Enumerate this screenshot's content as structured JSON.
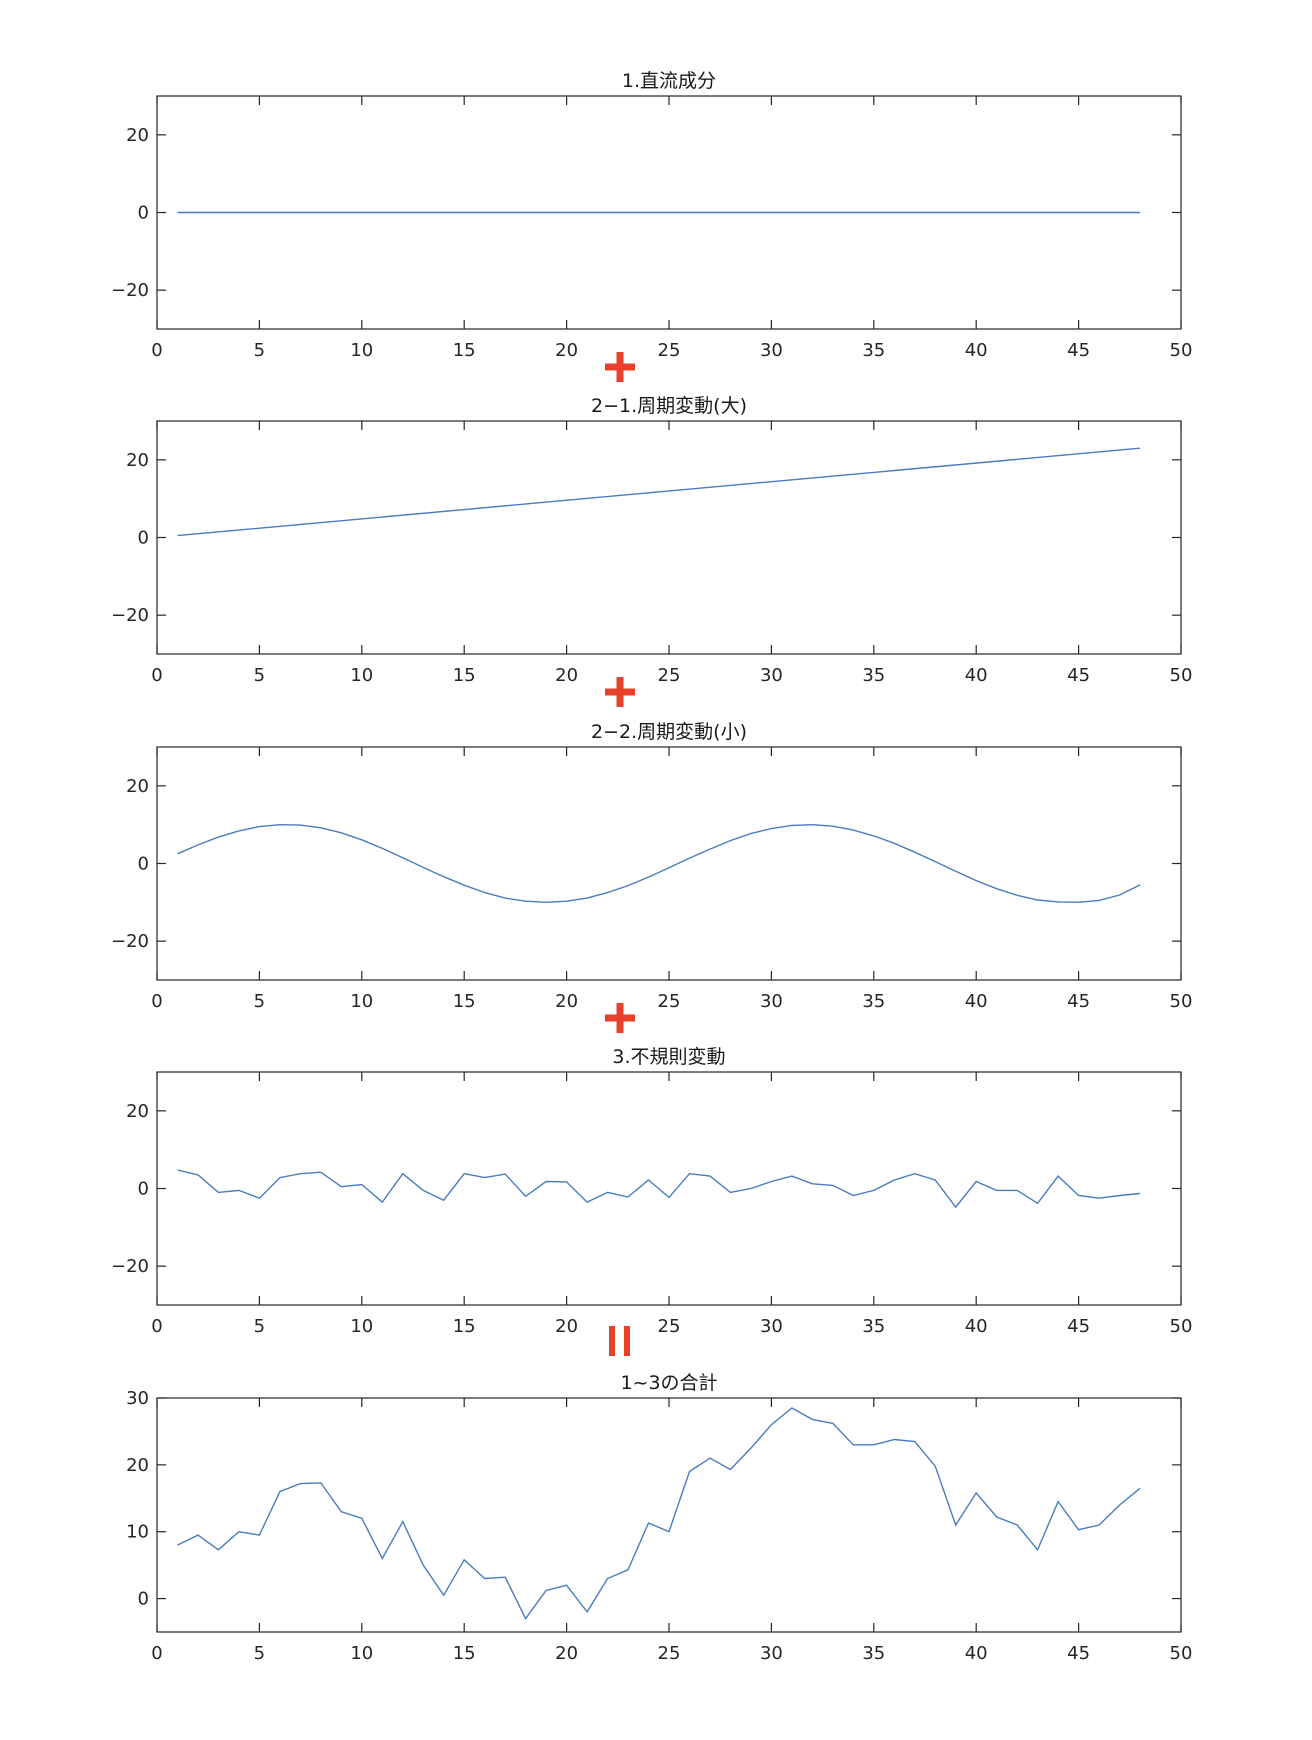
{
  "colors": {
    "line": "#4a7dbc",
    "operator": "#e8402a",
    "axis": "#262626"
  },
  "operators": [
    "plus-symbol",
    "plus-symbol",
    "plus-symbol",
    "equals-symbol"
  ],
  "chart_data": [
    {
      "type": "line",
      "title": "1.直流成分",
      "xlim": [
        0,
        50
      ],
      "ylim": [
        -30,
        30
      ],
      "xticks": [
        0,
        5,
        10,
        15,
        20,
        25,
        30,
        35,
        40,
        45,
        50
      ],
      "yticks": [
        -20,
        0,
        20
      ],
      "grid": false,
      "x": [
        1,
        48
      ],
      "values": [
        0,
        0
      ]
    },
    {
      "type": "line",
      "title": "2−1.周期変動(大)",
      "xlim": [
        0,
        50
      ],
      "ylim": [
        -30,
        30
      ],
      "xticks": [
        0,
        5,
        10,
        15,
        20,
        25,
        30,
        35,
        40,
        45,
        50
      ],
      "yticks": [
        -20,
        0,
        20
      ],
      "grid": false,
      "x": [
        1,
        48
      ],
      "values": [
        0.5,
        23
      ]
    },
    {
      "type": "line",
      "title": "2−2.周期変動(小)",
      "xlim": [
        0,
        50
      ],
      "ylim": [
        -30,
        30
      ],
      "xticks": [
        0,
        5,
        10,
        15,
        20,
        25,
        30,
        35,
        40,
        45,
        50
      ],
      "yticks": [
        -20,
        0,
        20
      ],
      "grid": false,
      "x": [
        1,
        2,
        3,
        4,
        5,
        6,
        7,
        8,
        9,
        10,
        11,
        12,
        13,
        14,
        15,
        16,
        17,
        18,
        19,
        20,
        21,
        22,
        23,
        24,
        25,
        26,
        27,
        28,
        29,
        30,
        31,
        32,
        33,
        34,
        35,
        36,
        37,
        38,
        39,
        40,
        41,
        42,
        43,
        44,
        45,
        46,
        47,
        48
      ],
      "values": [
        2.5,
        4.8,
        6.8,
        8.4,
        9.5,
        10.0,
        9.9,
        9.2,
        7.9,
        6.1,
        3.9,
        1.5,
        -1.0,
        -3.4,
        -5.6,
        -7.5,
        -8.9,
        -9.7,
        -10.0,
        -9.7,
        -8.9,
        -7.5,
        -5.7,
        -3.5,
        -1.1,
        1.4,
        3.7,
        5.9,
        7.7,
        9.0,
        9.8,
        10.0,
        9.6,
        8.6,
        7.1,
        5.2,
        2.9,
        0.5,
        -2.0,
        -4.4,
        -6.5,
        -8.2,
        -9.4,
        -9.9,
        -10.0,
        -9.5,
        -8.1,
        -5.5
      ]
    },
    {
      "type": "line",
      "title": "3.不規則変動",
      "xlim": [
        0,
        50
      ],
      "ylim": [
        -30,
        30
      ],
      "xticks": [
        0,
        5,
        10,
        15,
        20,
        25,
        30,
        35,
        40,
        45,
        50
      ],
      "yticks": [
        -20,
        0,
        20
      ],
      "grid": false,
      "x": [
        1,
        2,
        3,
        4,
        5,
        6,
        7,
        8,
        9,
        10,
        11,
        12,
        13,
        14,
        15,
        16,
        17,
        18,
        19,
        20,
        21,
        22,
        23,
        24,
        25,
        26,
        27,
        28,
        29,
        30,
        31,
        32,
        33,
        34,
        35,
        36,
        37,
        38,
        39,
        40,
        41,
        42,
        43,
        44,
        45,
        46,
        47,
        48
      ],
      "values": [
        4.8,
        3.5,
        -1.0,
        -0.5,
        -2.5,
        2.8,
        3.8,
        4.2,
        0.5,
        1.0,
        -3.5,
        3.8,
        -0.5,
        -3.0,
        3.8,
        2.8,
        3.7,
        -2.0,
        1.8,
        1.7,
        -3.5,
        -1.0,
        -2.2,
        2.2,
        -2.3,
        3.8,
        3.2,
        -1.0,
        0.0,
        1.8,
        3.2,
        1.2,
        0.8,
        -1.8,
        -0.5,
        2.2,
        3.8,
        2.2,
        -4.8,
        1.8,
        -0.5,
        -0.5,
        -3.8,
        3.2,
        -1.8,
        -2.5,
        -1.8,
        -1.3
      ]
    },
    {
      "type": "line",
      "title": "1~3の合計",
      "xlim": [
        0,
        50
      ],
      "ylim": [
        -5,
        30
      ],
      "xticks": [
        0,
        5,
        10,
        15,
        20,
        25,
        30,
        35,
        40,
        45,
        50
      ],
      "yticks": [
        0,
        10,
        20,
        30
      ],
      "grid": false,
      "x": [
        1,
        2,
        3,
        4,
        5,
        6,
        7,
        8,
        9,
        10,
        11,
        12,
        13,
        14,
        15,
        16,
        17,
        18,
        19,
        20,
        21,
        22,
        23,
        24,
        25,
        26,
        27,
        28,
        29,
        30,
        31,
        32,
        33,
        34,
        35,
        36,
        37,
        38,
        39,
        40,
        41,
        42,
        43,
        44,
        45,
        46,
        47,
        48
      ],
      "values": [
        8.0,
        9.5,
        7.3,
        10.0,
        9.5,
        16.0,
        17.2,
        17.3,
        13.0,
        12.0,
        6.0,
        11.5,
        5.0,
        0.5,
        5.8,
        3.0,
        3.2,
        -3.0,
        1.2,
        2.0,
        -2.0,
        3.0,
        4.3,
        11.3,
        10.0,
        19.0,
        21.0,
        19.3,
        22.5,
        26.0,
        28.5,
        26.8,
        26.2,
        23.0,
        23.0,
        23.8,
        23.5,
        19.8,
        11.0,
        15.8,
        12.2,
        11.0,
        7.3,
        14.5,
        10.3,
        11.0,
        14.0,
        16.5
      ]
    }
  ]
}
